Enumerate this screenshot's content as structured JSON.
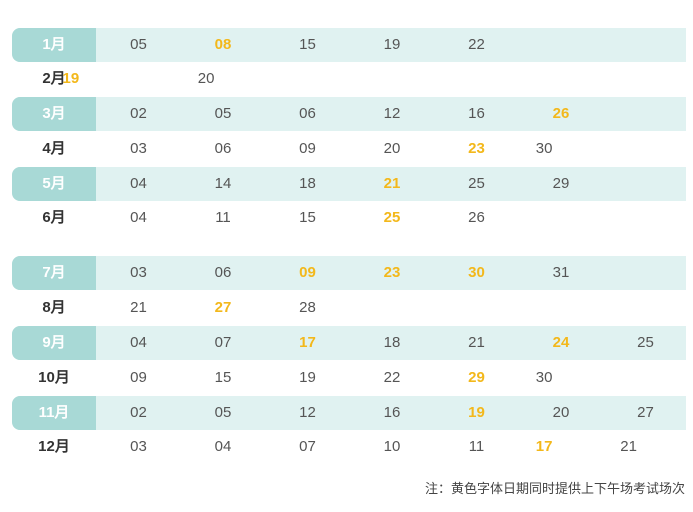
{
  "rows": [
    {
      "month": "1月",
      "shaded": true,
      "days": [
        {
          "c": 1,
          "d": "05"
        },
        {
          "c": 2,
          "d": "08",
          "hl": true
        },
        {
          "c": 3,
          "d": "15"
        },
        {
          "c": 4,
          "d": "19"
        },
        {
          "c": 5,
          "d": "22"
        }
      ]
    },
    {
      "month": "2月",
      "shaded": false,
      "days": [
        {
          "c": 0.2,
          "d": "19",
          "hl": true
        },
        {
          "c": 1.8,
          "d": "20"
        }
      ]
    },
    {
      "month": "3月",
      "shaded": true,
      "days": [
        {
          "c": 1,
          "d": "02"
        },
        {
          "c": 2,
          "d": "05"
        },
        {
          "c": 3,
          "d": "06"
        },
        {
          "c": 4,
          "d": "12"
        },
        {
          "c": 5,
          "d": "16"
        },
        {
          "c": 6,
          "d": "26",
          "hl": true
        }
      ]
    },
    {
      "month": "4月",
      "shaded": false,
      "days": [
        {
          "c": 1,
          "d": "03"
        },
        {
          "c": 2,
          "d": "06"
        },
        {
          "c": 3,
          "d": "09"
        },
        {
          "c": 4,
          "d": "20"
        },
        {
          "c": 5,
          "d": "23",
          "hl": true
        },
        {
          "c": 5.8,
          "d": "30"
        }
      ]
    },
    {
      "month": "5月",
      "shaded": true,
      "days": [
        {
          "c": 1,
          "d": "04"
        },
        {
          "c": 2,
          "d": "14"
        },
        {
          "c": 3,
          "d": "18"
        },
        {
          "c": 4,
          "d": "21",
          "hl": true
        },
        {
          "c": 5,
          "d": "25"
        },
        {
          "c": 6,
          "d": "29"
        }
      ]
    },
    {
      "month": "6月",
      "shaded": false,
      "days": [
        {
          "c": 1,
          "d": "04"
        },
        {
          "c": 2,
          "d": "11"
        },
        {
          "c": 3,
          "d": "15"
        },
        {
          "c": 4,
          "d": "25",
          "hl": true
        },
        {
          "c": 5,
          "d": "26"
        }
      ]
    },
    {
      "month": "7月",
      "shaded": true,
      "days": [
        {
          "c": 1,
          "d": "03"
        },
        {
          "c": 2,
          "d": "06"
        },
        {
          "c": 3,
          "d": "09",
          "hl": true
        },
        {
          "c": 4,
          "d": "23",
          "hl": true
        },
        {
          "c": 5,
          "d": "30",
          "hl": true
        },
        {
          "c": 6,
          "d": "31"
        }
      ]
    },
    {
      "month": "8月",
      "shaded": false,
      "days": [
        {
          "c": 1,
          "d": "21"
        },
        {
          "c": 2,
          "d": "27",
          "hl": true
        },
        {
          "c": 3,
          "d": "28"
        }
      ]
    },
    {
      "month": "9月",
      "shaded": true,
      "days": [
        {
          "c": 1,
          "d": "04"
        },
        {
          "c": 2,
          "d": "07"
        },
        {
          "c": 3,
          "d": "17",
          "hl": true
        },
        {
          "c": 4,
          "d": "18"
        },
        {
          "c": 5,
          "d": "21"
        },
        {
          "c": 6,
          "d": "24",
          "hl": true
        },
        {
          "c": 7,
          "d": "25"
        }
      ]
    },
    {
      "month": "10月",
      "shaded": false,
      "days": [
        {
          "c": 1,
          "d": "09"
        },
        {
          "c": 2,
          "d": "15"
        },
        {
          "c": 3,
          "d": "19"
        },
        {
          "c": 4,
          "d": "22"
        },
        {
          "c": 5,
          "d": "29",
          "hl": true
        },
        {
          "c": 5.8,
          "d": "30"
        }
      ]
    },
    {
      "month": "11月",
      "shaded": true,
      "days": [
        {
          "c": 1,
          "d": "02"
        },
        {
          "c": 2,
          "d": "05"
        },
        {
          "c": 3,
          "d": "12"
        },
        {
          "c": 4,
          "d": "16"
        },
        {
          "c": 5,
          "d": "19",
          "hl": true
        },
        {
          "c": 6,
          "d": "20"
        },
        {
          "c": 7,
          "d": "27"
        }
      ]
    },
    {
      "month": "12月",
      "shaded": false,
      "days": [
        {
          "c": 1,
          "d": "03"
        },
        {
          "c": 2,
          "d": "04"
        },
        {
          "c": 3,
          "d": "07"
        },
        {
          "c": 4,
          "d": "10"
        },
        {
          "c": 5,
          "d": "11"
        },
        {
          "c": 5.8,
          "d": "17",
          "hl": true
        },
        {
          "c": 6.8,
          "d": "21"
        }
      ]
    }
  ],
  "note": "注：黄色字体日期同时提供上下午场考试场次",
  "colors": {
    "highlight": "#f3b81b",
    "shaded_row": "#e0f2f1",
    "month_cell": "#a8d9d6"
  }
}
